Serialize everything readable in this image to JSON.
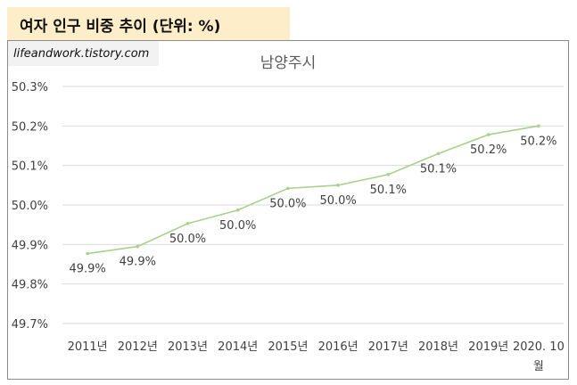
{
  "header": {
    "title": "여자 인구 비중 추이 (단위: %)"
  },
  "watermark": "lifeandwork.tistory.com",
  "colors": {
    "header_bg": "#fdeec9",
    "line": "#a9d18e",
    "gridline": "#d9d9d9",
    "text": "#404040"
  },
  "chart_data": {
    "type": "line",
    "title": "남양주시",
    "categories": [
      "2011년",
      "2012년",
      "2013년",
      "2014년",
      "2015년",
      "2016년",
      "2017년",
      "2018년",
      "2019년",
      "2020. 10 월"
    ],
    "series": [
      {
        "values": [
          49.877,
          49.895,
          49.953,
          49.987,
          50.042,
          50.05,
          50.077,
          50.13,
          50.178,
          50.2
        ],
        "labels": [
          "49.9%",
          "49.9%",
          "50.0%",
          "50.0%",
          "50.0%",
          "50.0%",
          "50.1%",
          "50.1%",
          "50.2%",
          "50.2%"
        ]
      }
    ],
    "ylim": [
      49.7,
      50.3
    ],
    "yticks": [
      49.7,
      49.8,
      49.9,
      50.0,
      50.1,
      50.2,
      50.3
    ],
    "ytick_labels": [
      "49.7%",
      "49.8%",
      "49.9%",
      "50.0%",
      "50.1%",
      "50.2%",
      "50.3%"
    ],
    "grid": true,
    "legend": "none"
  }
}
